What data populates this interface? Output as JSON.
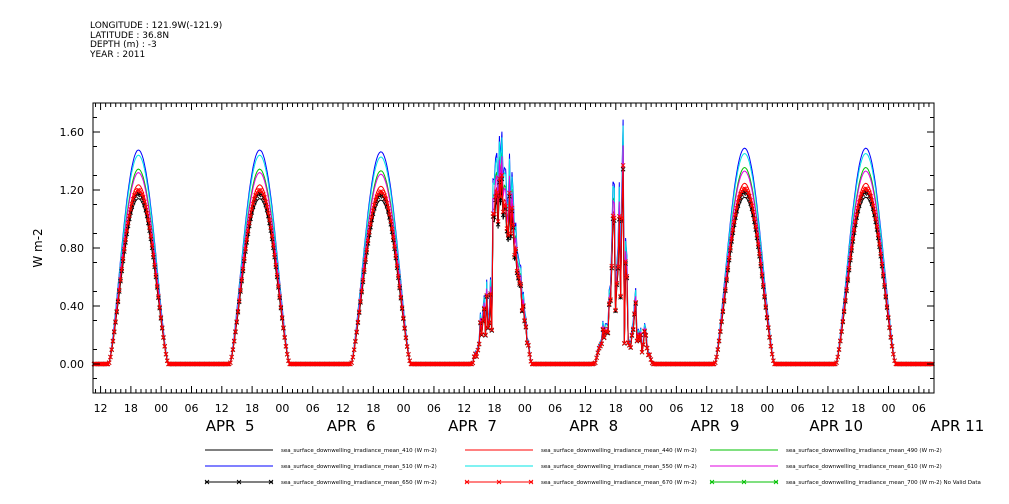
{
  "header": {
    "longitude": "LONGITUDE : 121.9W(-121.9)",
    "latitude": "LATITUDE : 36.8N",
    "depth": "DEPTH (m) : -3",
    "year": "YEAR : 2011"
  },
  "chart_data": {
    "type": "line",
    "ylabel": "W m-2",
    "ylim": [
      -0.2,
      1.8
    ],
    "yticks": [
      "0.00",
      "0.40",
      "0.80",
      "1.20",
      "1.60"
    ],
    "ytick_values": [
      0.0,
      0.4,
      0.8,
      1.2,
      1.6
    ],
    "x_unit": "hours since APR 4 00:00",
    "xlim": [
      10.5,
      177
    ],
    "hour_ticks": [
      "06",
      "12",
      "18",
      "00"
    ],
    "days": [
      {
        "label": "APR  5",
        "center_hour": 42
      },
      {
        "label": "APR  6",
        "center_hour": 66
      },
      {
        "label": "APR  7",
        "center_hour": 90
      },
      {
        "label": "APR  8",
        "center_hour": 114
      },
      {
        "label": "APR  9",
        "center_hour": 138
      },
      {
        "label": "APR 10",
        "center_hour": 162
      },
      {
        "label": "APR 11",
        "center_hour": 186
      }
    ],
    "daily_peaks": [
      1.2,
      1.19,
      1.25,
      1.22,
      1.21,
      1.21,
      1.18
    ],
    "series": [
      {
        "name": "sea_surface_downwelling_irradiance_mean_410 (W m-2)",
        "color": "#000000",
        "factor": 0.95,
        "marker": false
      },
      {
        "name": "sea_surface_downwelling_irradiance_mean_440 (W m-2)",
        "color": "#ff0000",
        "factor": 1.03,
        "marker": false
      },
      {
        "name": "sea_surface_downwelling_irradiance_mean_490 (W m-2)",
        "color": "#00c000",
        "factor": 1.12,
        "marker": false
      },
      {
        "name": "sea_surface_downwelling_irradiance_mean_510 (W m-2)",
        "color": "#0000ff",
        "factor": 1.23,
        "marker": false
      },
      {
        "name": "sea_surface_downwelling_irradiance_mean_550 (W m-2)",
        "color": "#00e5e5",
        "factor": 1.2,
        "marker": false
      },
      {
        "name": "sea_surface_downwelling_irradiance_mean_610 (W m-2)",
        "color": "#e000e0",
        "factor": 1.1,
        "marker": false
      },
      {
        "name": "sea_surface_downwelling_irradiance_mean_650 (W m-2)",
        "color": "#000000",
        "factor": 0.98,
        "marker": true
      },
      {
        "name": "sea_surface_downwelling_irradiance_mean_670 (W m-2)",
        "color": "#ff0000",
        "factor": 1.0,
        "marker": true
      },
      {
        "name": "sea_surface_downwelling_irradiance_mean_700 (W m-2) No Valid Data",
        "color": "#00c000",
        "factor": 0,
        "marker": true
      }
    ]
  }
}
